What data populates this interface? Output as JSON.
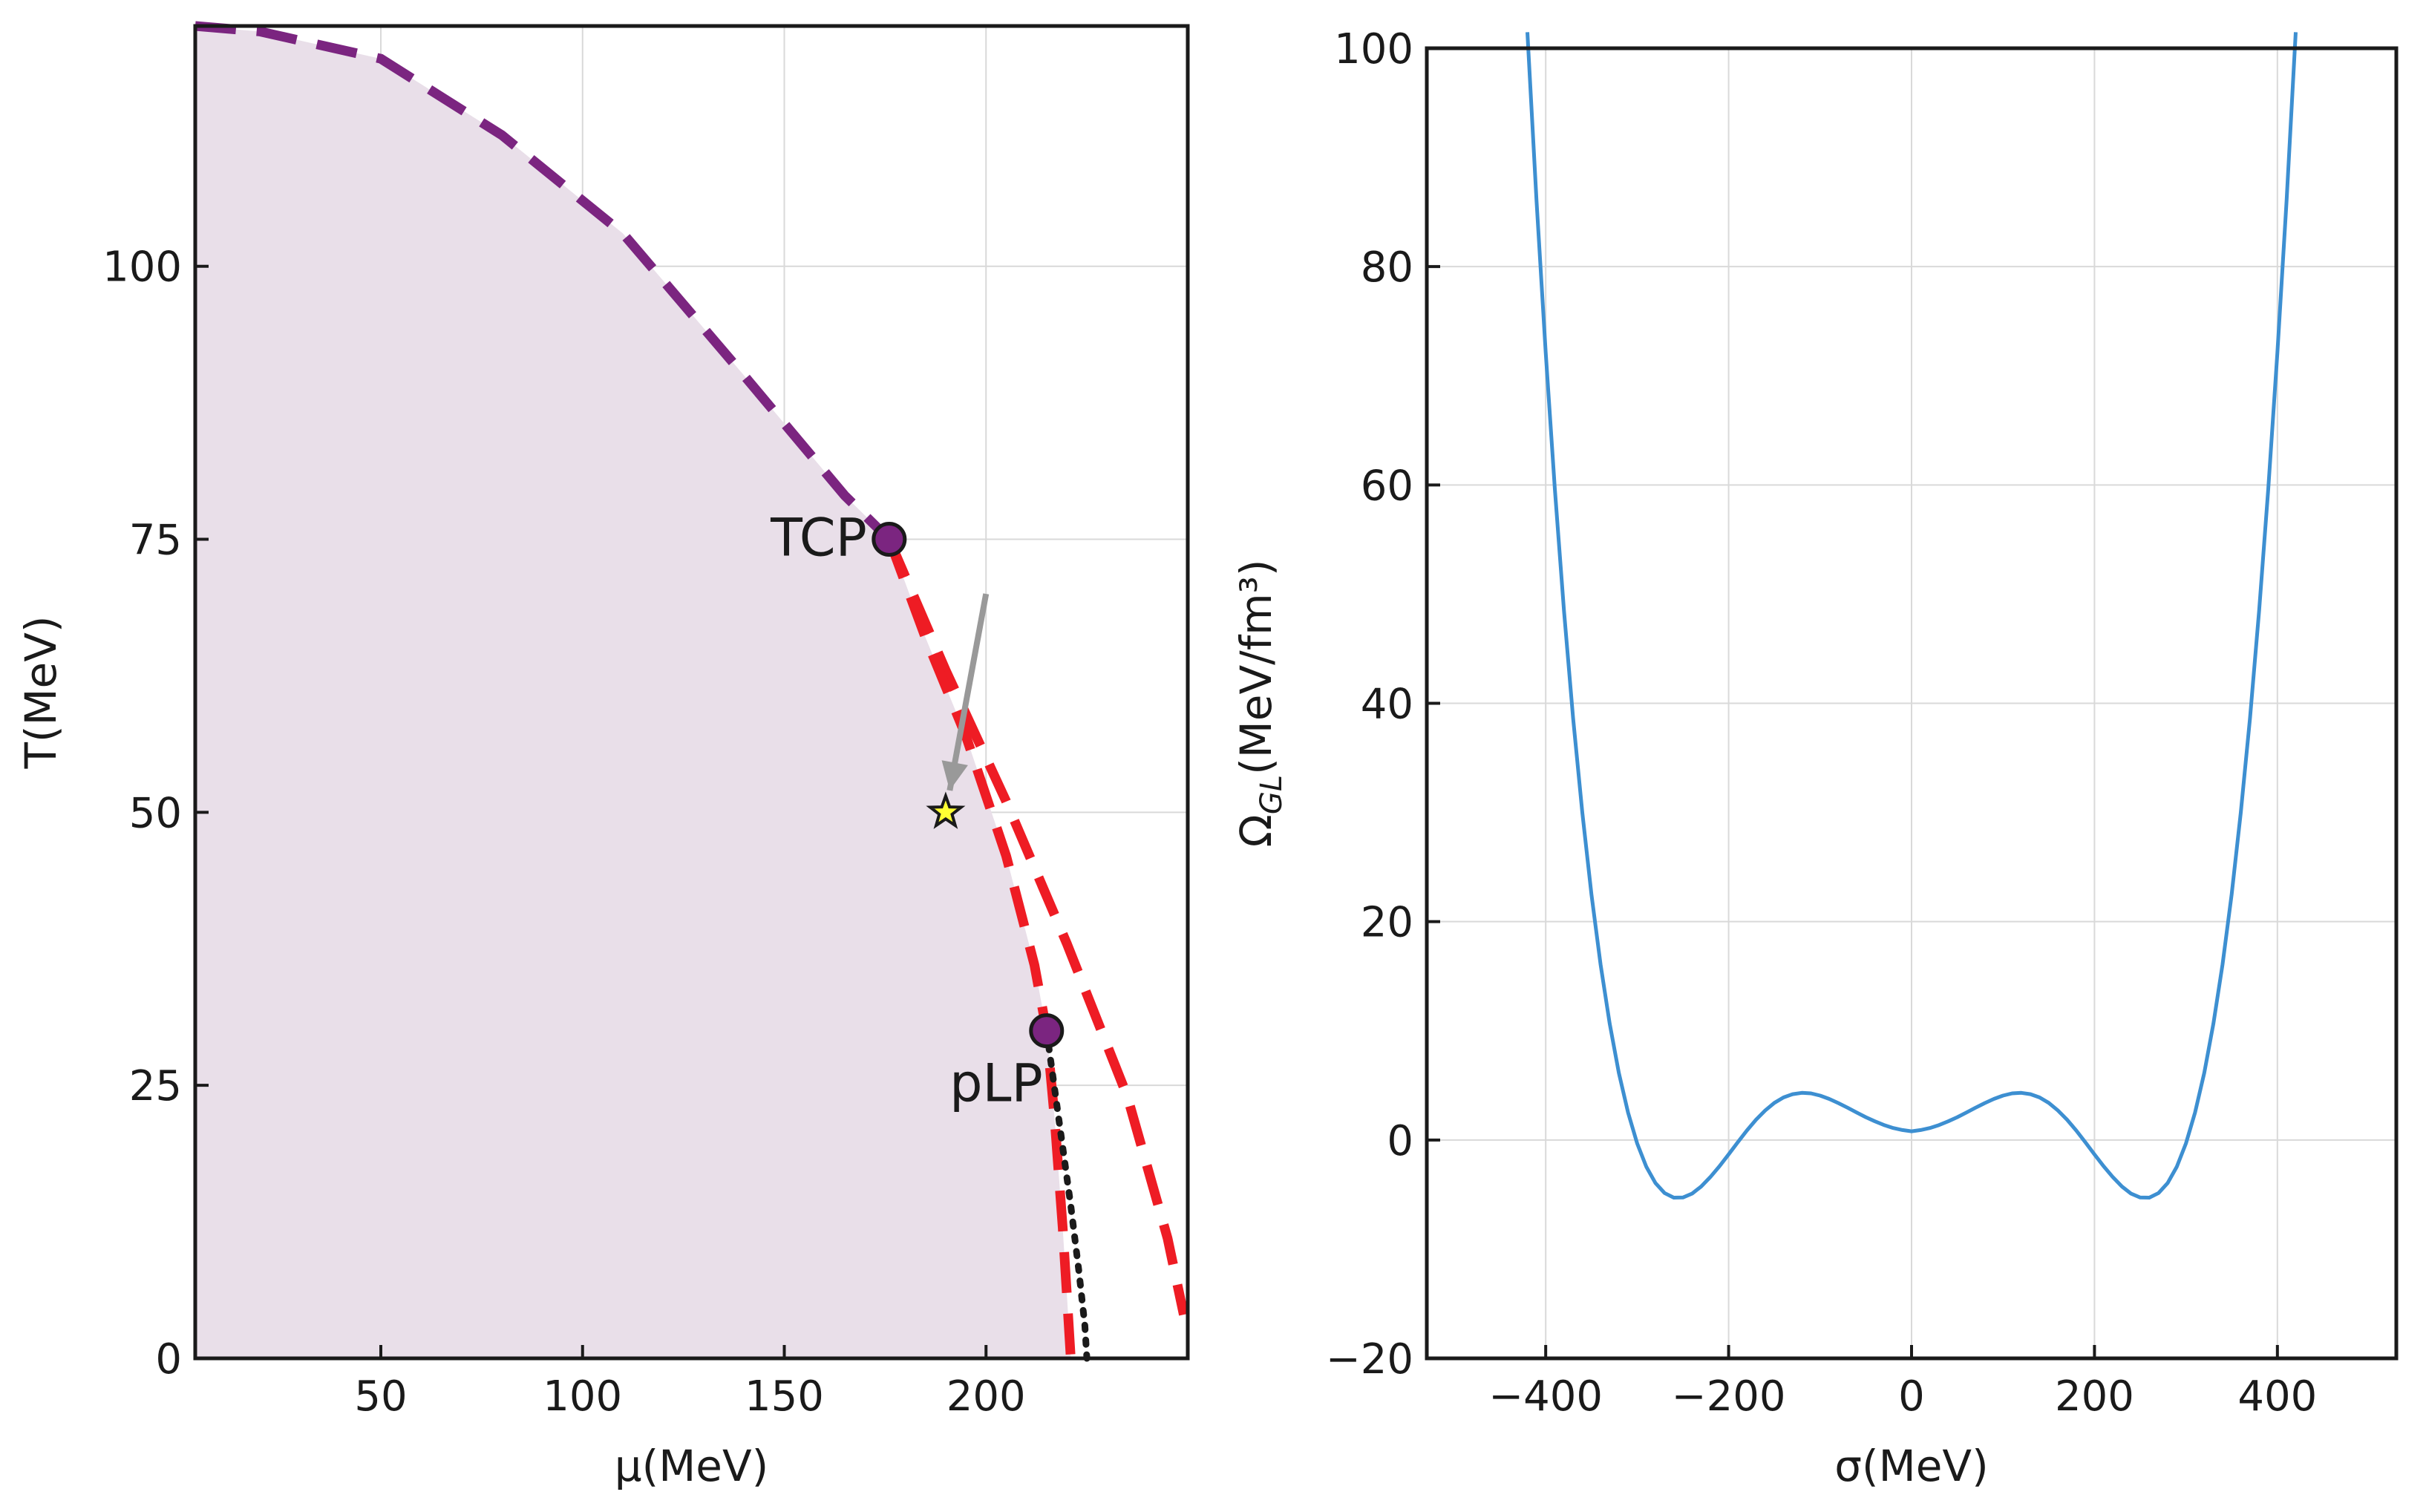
{
  "chart_data": [
    {
      "type": "line",
      "panel": "left",
      "title": "",
      "xlabel": "μ(MeV)",
      "ylabel": "T(MeV)",
      "xlim": [
        4,
        250
      ],
      "ylim": [
        0,
        122
      ],
      "xticks": [
        50,
        100,
        150,
        200
      ],
      "yticks": [
        0,
        25,
        50,
        75,
        100
      ],
      "xtick_labels": [
        "50",
        "100",
        "150",
        "200"
      ],
      "ytick_labels": [
        "0",
        "25",
        "50",
        "75",
        "100"
      ],
      "grid": true,
      "shaded_region": {
        "name": "broken-phase-region",
        "color": "#e9dfe9",
        "boundary_x": [
          4,
          20,
          50,
          80,
          110,
          140,
          165,
          176
        ],
        "boundary_y": [
          122,
          121.5,
          119,
          112,
          103,
          90,
          79,
          75
        ]
      },
      "series": [
        {
          "name": "second-order-line",
          "style": "dashed",
          "color": "#7b2580",
          "x": [
            4,
            20,
            50,
            80,
            110,
            140,
            165,
            176
          ],
          "y": [
            122,
            121.5,
            119,
            112,
            103,
            90,
            79,
            75
          ]
        },
        {
          "name": "spinodal-upper",
          "style": "dashed",
          "color": "#ee1c24",
          "x": [
            176,
            190,
            205,
            220,
            235,
            245,
            249
          ],
          "y": [
            75,
            63,
            51,
            38,
            24,
            11,
            4
          ]
        },
        {
          "name": "spinodal-lower",
          "style": "dashed",
          "color": "#ee1c24",
          "x": [
            176,
            185,
            195,
            205,
            212,
            215,
            217,
            219,
            220,
            221
          ],
          "y": [
            75,
            66,
            57,
            46,
            36,
            30,
            22,
            12,
            6,
            0
          ]
        },
        {
          "name": "dotted-line",
          "style": "dotted",
          "color": "#1a1a1a",
          "x": [
            215,
            218,
            221,
            223,
            224.5,
            225
          ],
          "y": [
            30,
            22,
            14,
            8,
            3,
            0
          ]
        }
      ],
      "points": [
        {
          "name": "TCP",
          "label": "TCP",
          "x": 176,
          "y": 75,
          "color": "#7b2580"
        },
        {
          "name": "pLP",
          "label": "pLP",
          "x": 215,
          "y": 30,
          "color": "#7b2580"
        }
      ],
      "star": {
        "x": 190,
        "y": 50,
        "color": "#ffff33"
      },
      "arrow": {
        "from": [
          200,
          70
        ],
        "to": [
          191,
          52
        ],
        "color": "#999999"
      }
    },
    {
      "type": "line",
      "panel": "right",
      "title": "",
      "xlabel": "σ(MeV)",
      "ylabel_main": "Ω",
      "ylabel_sub": "GL",
      "ylabel_units": "(MeV/fm³)",
      "xlim": [
        -530,
        530
      ],
      "ylim": [
        -20,
        100
      ],
      "xticks": [
        -400,
        -200,
        0,
        200,
        400
      ],
      "yticks": [
        -20,
        0,
        20,
        40,
        60,
        80,
        100
      ],
      "xtick_labels": [
        "−400",
        "−200",
        "0",
        "200",
        "400"
      ],
      "ytick_labels": [
        "−20",
        "0",
        "20",
        "40",
        "60",
        "80",
        "100"
      ],
      "grid": true,
      "series": [
        {
          "name": "omega-gl",
          "color": "#3d8fd1",
          "x": [
            -420,
            -410,
            -400,
            -390,
            -380,
            -370,
            -360,
            -350,
            -340,
            -330,
            -320,
            -310,
            -300,
            -290,
            -280,
            -270,
            -260,
            -250,
            -240,
            -230,
            -220,
            -210,
            -200,
            -190,
            -180,
            -170,
            -160,
            -150,
            -140,
            -130,
            -120,
            -110,
            -100,
            -90,
            -80,
            -70,
            -60,
            -50,
            -40,
            -30,
            -20,
            -10,
            0,
            10,
            20,
            30,
            40,
            50,
            60,
            70,
            80,
            90,
            100,
            110,
            120,
            130,
            140,
            150,
            160,
            170,
            180,
            190,
            200,
            210,
            220,
            230,
            240,
            250,
            260,
            270,
            280,
            290,
            300,
            310,
            320,
            330,
            340,
            350,
            360,
            370,
            380,
            390,
            400,
            410,
            420
          ],
          "y": [
            101.47,
            86.04,
            72.11,
            59.62,
            48.48,
            38.63,
            29.99,
            22.49,
            16.07,
            10.65,
            6.15,
            2.52,
            -0.32,
            -2.45,
            -3.94,
            -4.86,
            -5.28,
            -5.27,
            -4.91,
            -4.26,
            -3.4,
            -2.4,
            -1.32,
            -0.21,
            0.87,
            1.86,
            2.71,
            3.4,
            3.9,
            4.2,
            4.32,
            4.27,
            4.07,
            3.76,
            3.38,
            2.96,
            2.52,
            2.09,
            1.71,
            1.37,
            1.1,
            0.91,
            0.8,
            0.91,
            1.1,
            1.37,
            1.71,
            2.09,
            2.52,
            2.96,
            3.38,
            3.76,
            4.07,
            4.27,
            4.32,
            4.2,
            3.9,
            3.4,
            2.71,
            1.86,
            0.87,
            -0.21,
            -1.32,
            -2.4,
            -3.4,
            -4.26,
            -4.91,
            -5.27,
            -5.28,
            -4.86,
            -3.94,
            -2.45,
            -0.32,
            2.52,
            6.15,
            10.65,
            16.07,
            22.49,
            29.99,
            38.63,
            48.48,
            59.62,
            72.11,
            86.04,
            101.47
          ]
        }
      ]
    }
  ]
}
